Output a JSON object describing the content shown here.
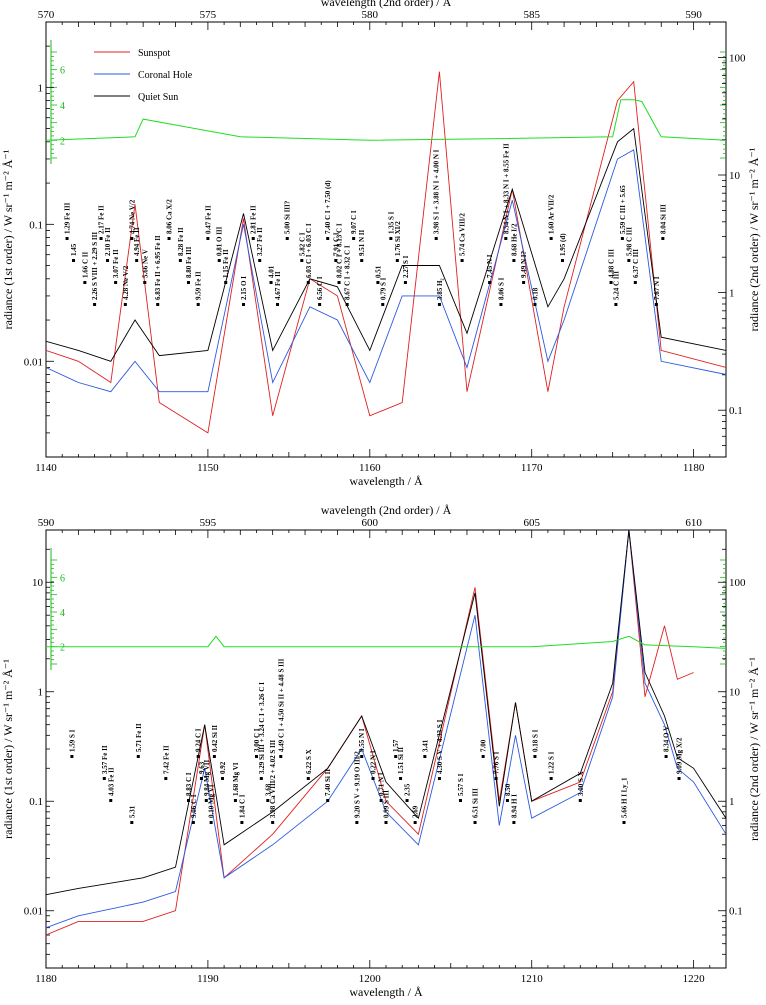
{
  "chart_data": [
    {
      "type": "line",
      "panel": "top",
      "xlabel": "wavelength / Å",
      "ylabel": "radiance (1st order) / W sr⁻¹ m⁻² Å⁻¹",
      "x2label": "wavelength (2nd order) / Å",
      "y2label": "radiance (2nd order) / W sr⁻¹ m⁻² Å⁻¹",
      "xlim": [
        1140,
        1182
      ],
      "x2lim": [
        570,
        591
      ],
      "ylim": [
        0.002,
        3
      ],
      "y2lim": [
        0.04,
        200
      ],
      "yscale": "log",
      "xticks": [
        "1140",
        "1150",
        "1160",
        "1170",
        "1180"
      ],
      "x2ticks": [
        "570",
        "575",
        "580",
        "585",
        "590"
      ],
      "yticks": [
        "0.01",
        "0.1",
        "1"
      ],
      "y2ticks": [
        "0.1",
        "1",
        "10",
        "100"
      ],
      "ratio_ticks": [
        "2",
        "4",
        "6"
      ],
      "legend": {
        "placement": "top-left",
        "entries": [
          {
            "name": "Sunspot",
            "color": "#e02020"
          },
          {
            "name": "Coronal Hole",
            "color": "#2a5ae0"
          },
          {
            "name": "Quiet Sun",
            "color": "#000000"
          }
        ]
      },
      "series": [
        {
          "name": "Sunspot",
          "color": "#e02020",
          "x": [
            1140,
            1142,
            1144,
            1145.5,
            1147,
            1150,
            1152.2,
            1154,
            1156.3,
            1158,
            1160,
            1162,
            1164.3,
            1166,
            1168.8,
            1171,
            1172,
            1175.3,
            1176.3,
            1178,
            1182
          ],
          "y": [
            0.012,
            0.01,
            0.007,
            0.14,
            0.005,
            0.003,
            0.11,
            0.004,
            0.04,
            0.03,
            0.004,
            0.005,
            1.3,
            0.006,
            0.18,
            0.006,
            0.025,
            0.8,
            1.1,
            0.012,
            0.009
          ]
        },
        {
          "name": "Coronal Hole",
          "color": "#2a5ae0",
          "x": [
            1140,
            1142,
            1144,
            1145.5,
            1147,
            1150,
            1152.2,
            1154,
            1156.3,
            1158,
            1160,
            1162,
            1164.3,
            1166,
            1168.8,
            1171,
            1172,
            1175.3,
            1176.3,
            1178,
            1182
          ],
          "y": [
            0.009,
            0.007,
            0.006,
            0.01,
            0.006,
            0.006,
            0.1,
            0.007,
            0.025,
            0.02,
            0.007,
            0.03,
            0.03,
            0.009,
            0.15,
            0.01,
            0.02,
            0.3,
            0.35,
            0.01,
            0.008
          ]
        },
        {
          "name": "Quiet Sun",
          "color": "#000000",
          "x": [
            1140,
            1142,
            1144,
            1145.5,
            1147,
            1150,
            1152.2,
            1154,
            1156.3,
            1158,
            1160,
            1162,
            1164.3,
            1166,
            1168.8,
            1171,
            1172,
            1175.3,
            1176.3,
            1178,
            1182
          ],
          "y": [
            0.014,
            0.012,
            0.01,
            0.02,
            0.011,
            0.012,
            0.12,
            0.012,
            0.04,
            0.035,
            0.012,
            0.05,
            0.05,
            0.016,
            0.18,
            0.025,
            0.04,
            0.4,
            0.5,
            0.015,
            0.012
          ]
        },
        {
          "name": "ratio",
          "color": "#22dd22",
          "x": [
            1140,
            1145.5,
            1146,
            1152,
            1160,
            1168,
            1175,
            1175.5,
            1176.3,
            1176.8,
            1178,
            1182
          ],
          "y": [
            2.0,
            2.2,
            3.2,
            2.2,
            2.0,
            2.1,
            2.2,
            4.3,
            4.3,
            4.2,
            2.2,
            2.0
          ]
        }
      ],
      "annotations": [
        {
          "x": 1141.3,
          "text": "1.29 Fe III"
        },
        {
          "x": 1141.7,
          "text": "1.45"
        },
        {
          "x": 1142.4,
          "text": "1.66 C II"
        },
        {
          "x": 1143.0,
          "text": "2.26 S VIII + 2.29 S III"
        },
        {
          "x": 1143.4,
          "text": "2.17 Fe II"
        },
        {
          "x": 1143.8,
          "text": "2.10 Fe II"
        },
        {
          "x": 1144.3,
          "text": "3.07 Fe II"
        },
        {
          "x": 1144.9,
          "text": "4.28 Ne V/2"
        },
        {
          "x": 1145.3,
          "text": "4.74 Ne V/2"
        },
        {
          "x": 1145.6,
          "text": "4.94 Fe II"
        },
        {
          "x": 1146.1,
          "text": "5.66 Ne V"
        },
        {
          "x": 1146.9,
          "text": "6.83 Fe II + 6.95 Fe II"
        },
        {
          "x": 1147.6,
          "text": "8.06 Ca X/2"
        },
        {
          "x": 1148.3,
          "text": "8.28 Fe II"
        },
        {
          "x": 1148.8,
          "text": "8.80 Fe III"
        },
        {
          "x": 1149.4,
          "text": "9.59 Fe II"
        },
        {
          "x": 1150.0,
          "text": "0.47 Fe II"
        },
        {
          "x": 1150.7,
          "text": "0.81 O III"
        },
        {
          "x": 1151.1,
          "text": "1.15 Fe II"
        },
        {
          "x": 1152.2,
          "text": "2.15 O I"
        },
        {
          "x": 1152.8,
          "text": "2.81 Fe II"
        },
        {
          "x": 1153.2,
          "text": "3.27 Fe II"
        },
        {
          "x": 1153.9,
          "text": "4.01"
        },
        {
          "x": 1154.3,
          "text": "4.67 Fe II"
        },
        {
          "x": 1154.9,
          "text": "5.00 Si III?"
        },
        {
          "x": 1155.8,
          "text": "5.82 C I"
        },
        {
          "x": 1156.2,
          "text": "6.03 C I + 6.03 C I"
        },
        {
          "x": 1156.9,
          "text": "6.56 C I"
        },
        {
          "x": 1157.4,
          "text": "7.40 C I + 7.50 (d)"
        },
        {
          "x": 1157.9,
          "text": "7.91 C I"
        },
        {
          "x": 1158.1,
          "text": "8.02 C I + 8.13 C I"
        },
        {
          "x": 1158.6,
          "text": "8.67 C I + 8.32 C I"
        },
        {
          "x": 1159.0,
          "text": "9.07 C I"
        },
        {
          "x": 1159.5,
          "text": "9.51 N II"
        },
        {
          "x": 1160.5,
          "text": "0.51"
        },
        {
          "x": 1160.8,
          "text": "0.79 S I"
        },
        {
          "x": 1161.3,
          "text": "1.35 S I"
        },
        {
          "x": 1161.7,
          "text": "1.76 Si XI/2"
        },
        {
          "x": 1162.2,
          "text": "2.27 S I"
        },
        {
          "x": 1164.3,
          "text": "3.85 H₂"
        },
        {
          "x": 1164.1,
          "text": "3.98 S I + 3.88 N I + 4.00 N I"
        },
        {
          "x": 1165.7,
          "text": "5.74 Ca VIII/2"
        },
        {
          "x": 1167.4,
          "text": "7.45 N I"
        },
        {
          "x": 1168.1,
          "text": "8.06 S I"
        },
        {
          "x": 1168.4,
          "text": "8.54 N I + 8.33 N I + 8.55 Fe II"
        },
        {
          "x": 1168.9,
          "text": "8.68 He I/2"
        },
        {
          "x": 1169.5,
          "text": "9.49 N I?"
        },
        {
          "x": 1170.2,
          "text": "0.18"
        },
        {
          "x": 1171.2,
          "text": "1.60 Ar VII/2"
        },
        {
          "x": 1171.9,
          "text": "1.95 (d)"
        },
        {
          "x": 1174.9,
          "text": "4.88 C III"
        },
        {
          "x": 1175.2,
          "text": "5.24 C III"
        },
        {
          "x": 1175.6,
          "text": "5.59 C III + 5.65"
        },
        {
          "x": 1176.0,
          "text": "5.98 C III"
        },
        {
          "x": 1176.4,
          "text": "6.37 C III"
        },
        {
          "x": 1177.7,
          "text": "7.67 N I"
        },
        {
          "x": 1178.1,
          "text": "8.04 Si III"
        }
      ]
    },
    {
      "type": "line",
      "panel": "bottom",
      "xlabel": "wavelength / Å",
      "ylabel": "radiance (1st order) / W sr⁻¹ m⁻² Å⁻¹",
      "x2label": "wavelength (2nd order) / Å",
      "y2label": "radiance (2nd order) / W sr⁻¹ m⁻² Å⁻¹",
      "xlim": [
        1180,
        1222
      ],
      "x2lim": [
        590,
        611
      ],
      "ylim": [
        0.003,
        30
      ],
      "y2lim": [
        0.03,
        300
      ],
      "yscale": "log",
      "xticks": [
        "1180",
        "1190",
        "1200",
        "1210",
        "1220"
      ],
      "x2ticks": [
        "590",
        "595",
        "600",
        "605",
        "610"
      ],
      "yticks": [
        "0.01",
        "0.1",
        "1",
        "10"
      ],
      "y2ticks": [
        "0.1",
        "1",
        "10",
        "100"
      ],
      "ratio_ticks": [
        "2",
        "4",
        "6"
      ],
      "series": [
        {
          "name": "Sunspot",
          "color": "#e02020",
          "x": [
            1180,
            1182,
            1186,
            1188,
            1189.8,
            1191,
            1194,
            1197.4,
            1199.5,
            1201,
            1203,
            1206.5,
            1208,
            1209,
            1210,
            1213,
            1215,
            1216,
            1217,
            1218.2,
            1219,
            1220
          ],
          "y": [
            0.006,
            0.008,
            0.008,
            0.01,
            0.5,
            0.02,
            0.05,
            0.2,
            0.6,
            0.1,
            0.05,
            9.0,
            0.1,
            0.8,
            0.1,
            0.15,
            1.0,
            30,
            0.9,
            4.0,
            1.3,
            1.5
          ]
        },
        {
          "name": "Coronal Hole",
          "color": "#2a5ae0",
          "x": [
            1180,
            1182,
            1186,
            1188,
            1189.8,
            1191,
            1194,
            1197.4,
            1199.5,
            1201,
            1203,
            1206.5,
            1208,
            1209,
            1210,
            1213,
            1215,
            1216,
            1217,
            1218.2,
            1219,
            1220,
            1222
          ],
          "y": [
            0.007,
            0.009,
            0.012,
            0.015,
            0.2,
            0.02,
            0.04,
            0.1,
            0.3,
            0.08,
            0.04,
            5.0,
            0.06,
            0.4,
            0.07,
            0.12,
            0.9,
            30,
            1.2,
            0.5,
            0.2,
            0.15,
            0.05
          ]
        },
        {
          "name": "Quiet Sun",
          "color": "#000000",
          "x": [
            1180,
            1182,
            1186,
            1188,
            1189.8,
            1191,
            1194,
            1197.4,
            1199.5,
            1201,
            1203,
            1206.5,
            1208,
            1209,
            1210,
            1213,
            1215,
            1216,
            1217,
            1218.2,
            1219,
            1220,
            1222
          ],
          "y": [
            0.014,
            0.016,
            0.02,
            0.025,
            0.5,
            0.04,
            0.08,
            0.2,
            0.6,
            0.15,
            0.07,
            8.0,
            0.09,
            0.8,
            0.1,
            0.18,
            1.2,
            30,
            1.5,
            0.6,
            0.25,
            0.2,
            0.07
          ]
        },
        {
          "name": "ratio",
          "color": "#22dd22",
          "x": [
            1180,
            1190,
            1190.5,
            1191,
            1200,
            1206.5,
            1210,
            1215,
            1216,
            1217,
            1220,
            1222
          ],
          "y": [
            2.0,
            2.0,
            2.6,
            2.0,
            2.0,
            2.0,
            2.0,
            2.3,
            2.6,
            2.1,
            2.0,
            1.9
          ]
        }
      ],
      "annotations": [
        {
          "x": 1181.6,
          "text": "1.59 S I"
        },
        {
          "x": 1183.6,
          "text": "3.57 Fe II"
        },
        {
          "x": 1184.0,
          "text": "4.03 Fe II"
        },
        {
          "x": 1185.3,
          "text": "5.31"
        },
        {
          "x": 1185.7,
          "text": "5.71 Fe II"
        },
        {
          "x": 1187.4,
          "text": "7.42 Fe II"
        },
        {
          "x": 1188.8,
          "text": "8.83 C I"
        },
        {
          "x": 1189.1,
          "text": "9.06 C I"
        },
        {
          "x": 1189.4,
          "text": "9.24 C I"
        },
        {
          "x": 1189.6,
          "text": "9.63"
        },
        {
          "x": 1189.9,
          "text": "9.84 Mg VII"
        },
        {
          "x": 1190.2,
          "text": "0.10 Mg VI"
        },
        {
          "x": 1190.4,
          "text": "0.42 Si II"
        },
        {
          "x": 1190.9,
          "text": "0.92"
        },
        {
          "x": 1191.7,
          "text": "1.68 Mg VI"
        },
        {
          "x": 1192.1,
          "text": "1.84 C I"
        },
        {
          "x": 1193.0,
          "text": "3.00 C I"
        },
        {
          "x": 1193.3,
          "text": "3.29 Si III + 3.24 C I + 3.26 C I"
        },
        {
          "x": 1193.7,
          "text": "3.68"
        },
        {
          "x": 1194.0,
          "text": "3.98 Ca VIII/2 + 4.02 S III"
        },
        {
          "x": 1194.5,
          "text": "4.49 C I + 4.50 Si II + 4.48 S III"
        },
        {
          "x": 1196.2,
          "text": "6.22 S X"
        },
        {
          "x": 1197.4,
          "text": "7.40 Si II"
        },
        {
          "x": 1199.2,
          "text": "9.20 S V + 9.19 O III/2"
        },
        {
          "x": 1199.5,
          "text": "9.55 N I"
        },
        {
          "x": 1200.2,
          "text": "0.22 N I"
        },
        {
          "x": 1200.7,
          "text": "0.71 N I"
        },
        {
          "x": 1201.0,
          "text": "0.99 S III"
        },
        {
          "x": 1201.6,
          "text": "1.57"
        },
        {
          "x": 1201.9,
          "text": "1.51 Si II"
        },
        {
          "x": 1202.3,
          "text": "2.35"
        },
        {
          "x": 1202.8,
          "text": "2.69"
        },
        {
          "x": 1203.4,
          "text": "3.41"
        },
        {
          "x": 1204.3,
          "text": "4.30 S V + 4.33 S I"
        },
        {
          "x": 1205.6,
          "text": "5.57 S I"
        },
        {
          "x": 1206.5,
          "text": "6.51 Si III"
        },
        {
          "x": 1207.0,
          "text": "7.00"
        },
        {
          "x": 1207.8,
          "text": "7.76 S I"
        },
        {
          "x": 1208.5,
          "text": "8.50"
        },
        {
          "x": 1208.9,
          "text": "8.94 H I"
        },
        {
          "x": 1210.2,
          "text": "0.18 S I"
        },
        {
          "x": 1211.2,
          "text": "1.22 S I"
        },
        {
          "x": 1213.0,
          "text": "3.00 S X"
        },
        {
          "x": 1215.7,
          "text": "5.66 H I Ly_1"
        },
        {
          "x": 1218.3,
          "text": "8.34 O V"
        },
        {
          "x": 1219.1,
          "text": "9.09 Mg X/2"
        }
      ]
    }
  ]
}
